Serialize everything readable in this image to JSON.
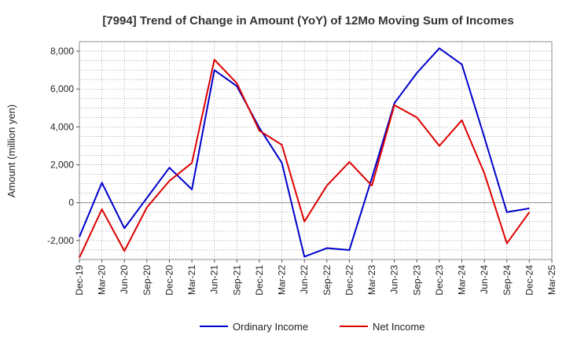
{
  "chart_data": {
    "type": "line",
    "title": "[7994]  Trend of Change in Amount (YoY) of 12Mo Moving Sum of Incomes",
    "xlabel": "",
    "ylabel": "Amount (million yen)",
    "ylim": [
      -3000,
      8500
    ],
    "yticks": [
      -2000,
      0,
      2000,
      4000,
      6000,
      8000
    ],
    "ytick_labels": [
      "-2,000",
      "0",
      "2,000",
      "4,000",
      "6,000",
      "8,000"
    ],
    "categories": [
      "Dec-19",
      "Mar-20",
      "Jun-20",
      "Sep-20",
      "Dec-20",
      "Mar-21",
      "Jun-21",
      "Sep-21",
      "Dec-21",
      "Mar-22",
      "Jun-22",
      "Sep-22",
      "Dec-22",
      "Mar-23",
      "Jun-23",
      "Sep-23",
      "Dec-23",
      "Mar-24",
      "Jun-24",
      "Sep-24",
      "Dec-24",
      "Mar-25"
    ],
    "grid": true,
    "legend_position": "bottom",
    "series": [
      {
        "name": "Ordinary Income",
        "color": "#0000cc",
        "values": [
          -1800,
          1050,
          -1350,
          250,
          1850,
          700,
          7000,
          6150,
          3950,
          2100,
          -2850,
          -2400,
          -2500,
          1300,
          5250,
          6850,
          8150,
          7300,
          3450,
          -500,
          -300,
          null
        ]
      },
      {
        "name": "Net Income",
        "color": "#dd0000",
        "values": [
          -2900,
          -350,
          -2550,
          -250,
          1150,
          2100,
          7550,
          6300,
          3800,
          3050,
          -1000,
          900,
          2150,
          900,
          5150,
          4500,
          3000,
          4350,
          1550,
          -2150,
          -500,
          null
        ]
      }
    ]
  }
}
